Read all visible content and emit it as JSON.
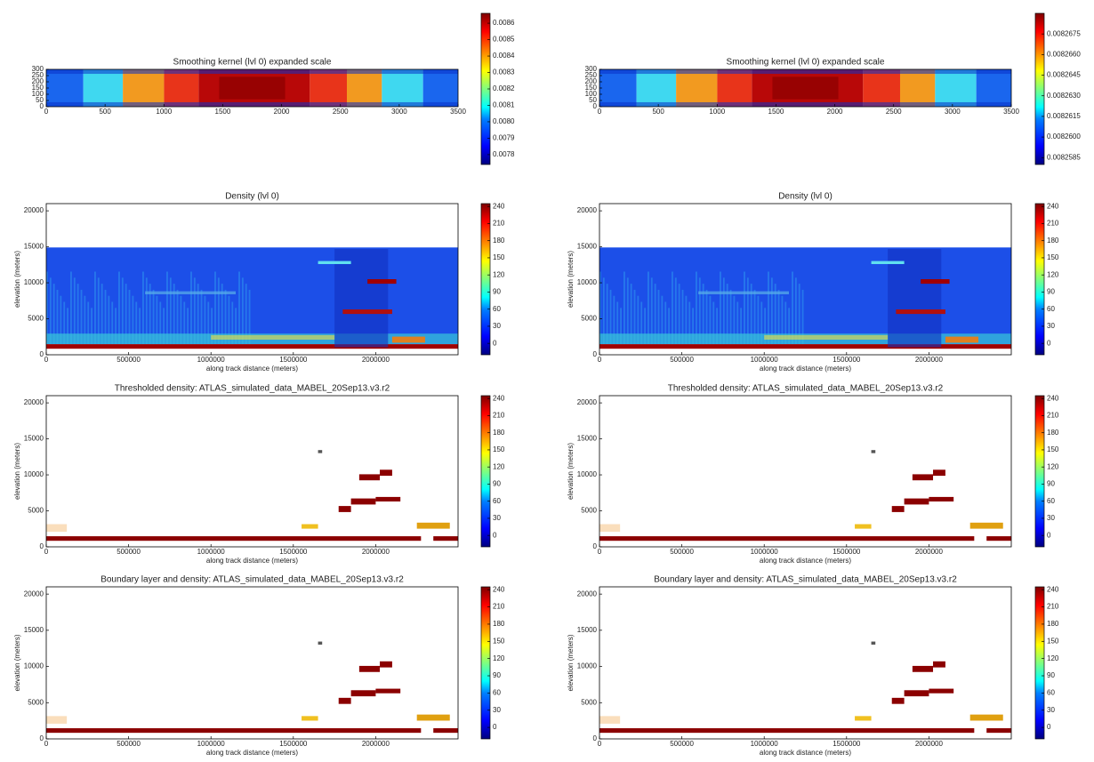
{
  "chart_data": [
    {
      "type": "heatmap",
      "title": "Smoothing kernel (lvl 0) expanded scale",
      "xlim": [
        0,
        3500
      ],
      "xticks": [
        0,
        500,
        1000,
        1500,
        2000,
        2500,
        3000,
        3500
      ],
      "ylim": [
        0,
        300
      ],
      "yticks": [
        0,
        50,
        100,
        150,
        200,
        250,
        300
      ],
      "colorbar": {
        "lim": [
          0.00774,
          0.00866
        ],
        "ticks": [
          0.0078,
          0.0079,
          {
            "value": 0.008,
            "label": "0.0080"
          },
          0.0081,
          0.0082,
          0.0083,
          0.0084,
          0.0085,
          0.0086
        ]
      }
    },
    {
      "type": "heatmap",
      "title": "Smoothing kernel (lvl 0) expanded scale",
      "xlim": [
        0,
        3500
      ],
      "xticks": [
        0,
        500,
        1000,
        1500,
        2000,
        2500,
        3000,
        3500
      ],
      "ylim": [
        0,
        300
      ],
      "yticks": [
        0,
        50,
        100,
        150,
        200,
        250,
        300
      ],
      "colorbar": {
        "lim": [
          0.008258,
          0.008269
        ],
        "ticks": [
          0.0082585,
          {
            "value": 0.00826,
            "label": "0.0082600"
          },
          0.0082615,
          {
            "value": 0.008263,
            "label": "0.0082630"
          },
          0.0082645,
          {
            "value": 0.008266,
            "label": "0.0082660"
          },
          0.0082675
        ]
      }
    },
    {
      "type": "heatmap",
      "title": "Density (lvl 0)",
      "xlabel": "along track distance (meters)",
      "ylabel": "elevation (meters)",
      "xlim": [
        0,
        2500000
      ],
      "xticks": [
        0,
        500000,
        1000000,
        1500000,
        2000000
      ],
      "ylim": [
        0,
        21000
      ],
      "yticks": [
        0,
        5000,
        10000,
        15000,
        20000
      ],
      "colorbar": {
        "lim": [
          -20,
          245
        ],
        "ticks": [
          0,
          30,
          60,
          90,
          120,
          150,
          180,
          210,
          240
        ]
      }
    },
    {
      "type": "heatmap",
      "title": "Density (lvl 0)",
      "xlabel": "along track distance (meters)",
      "ylabel": "elevation (meters)",
      "xlim": [
        0,
        2500000
      ],
      "xticks": [
        0,
        500000,
        1000000,
        1500000,
        2000000
      ],
      "ylim": [
        0,
        21000
      ],
      "yticks": [
        0,
        5000,
        10000,
        15000,
        20000
      ],
      "colorbar": {
        "lim": [
          -20,
          245
        ],
        "ticks": [
          0,
          30,
          60,
          90,
          120,
          150,
          180,
          210,
          240
        ]
      }
    },
    {
      "type": "heatmap",
      "title": "Thresholded density: ATLAS_simulated_data_MABEL_20Sep13.v3.r2",
      "xlabel": "along track distance (meters)",
      "ylabel": "elevation (meters)",
      "xlim": [
        0,
        2500000
      ],
      "xticks": [
        0,
        500000,
        1000000,
        1500000,
        2000000
      ],
      "ylim": [
        0,
        21000
      ],
      "yticks": [
        0,
        5000,
        10000,
        15000,
        20000
      ],
      "colorbar": {
        "lim": [
          -20,
          245
        ],
        "ticks": [
          0,
          30,
          60,
          90,
          120,
          150,
          180,
          210,
          240
        ]
      }
    },
    {
      "type": "heatmap",
      "title": "Thresholded density: ATLAS_simulated_data_MABEL_20Sep13.v3.r2",
      "xlabel": "along track distance (meters)",
      "ylabel": "elevation (meters)",
      "xlim": [
        0,
        2500000
      ],
      "xticks": [
        0,
        500000,
        1000000,
        1500000,
        2000000
      ],
      "ylim": [
        0,
        21000
      ],
      "yticks": [
        0,
        5000,
        10000,
        15000,
        20000
      ],
      "colorbar": {
        "lim": [
          -20,
          245
        ],
        "ticks": [
          0,
          30,
          60,
          90,
          120,
          150,
          180,
          210,
          240
        ]
      }
    },
    {
      "type": "heatmap",
      "title": "Boundary layer and density: ATLAS_simulated_data_MABEL_20Sep13.v3.r2",
      "xlabel": "along track distance (meters)",
      "ylabel": "elevation (meters)",
      "xlim": [
        0,
        2500000
      ],
      "xticks": [
        0,
        500000,
        1000000,
        1500000,
        2000000
      ],
      "ylim": [
        0,
        21000
      ],
      "yticks": [
        0,
        5000,
        10000,
        15000,
        20000
      ],
      "colorbar": {
        "lim": [
          -20,
          245
        ],
        "ticks": [
          0,
          30,
          60,
          90,
          120,
          150,
          180,
          210,
          240
        ]
      }
    },
    {
      "type": "heatmap",
      "title": "Boundary layer and density: ATLAS_simulated_data_MABEL_20Sep13.v3.r2",
      "xlabel": "along track distance (meters)",
      "ylabel": "elevation (meters)",
      "xlim": [
        0,
        2500000
      ],
      "xticks": [
        0,
        500000,
        1000000,
        1500000,
        2000000
      ],
      "ylim": [
        0,
        21000
      ],
      "yticks": [
        0,
        5000,
        10000,
        15000,
        20000
      ],
      "colorbar": {
        "lim": [
          -20,
          245
        ],
        "ticks": [
          0,
          30,
          60,
          90,
          120,
          150,
          180,
          210,
          240
        ]
      }
    }
  ]
}
